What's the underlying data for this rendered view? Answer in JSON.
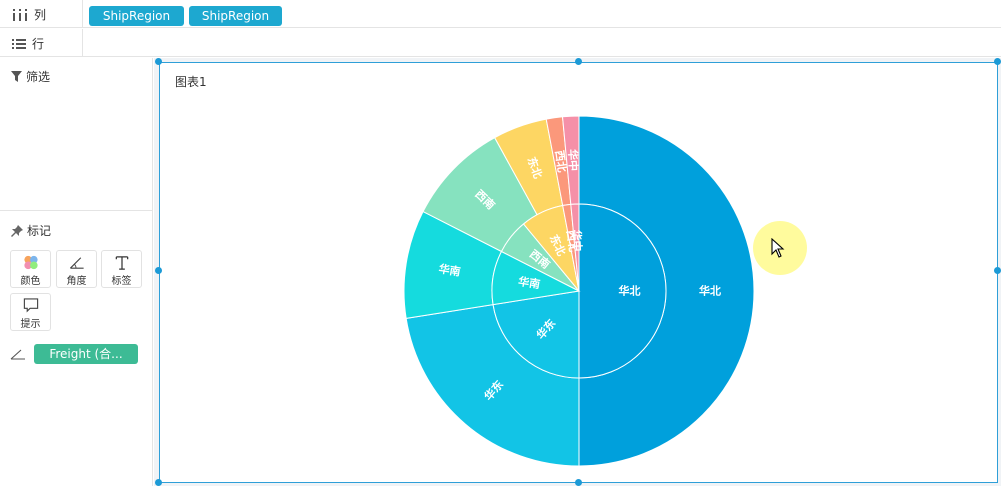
{
  "shelves": {
    "columns": {
      "label": "列",
      "pills": [
        "ShipRegion",
        "ShipRegion"
      ]
    },
    "rows": {
      "label": "行"
    }
  },
  "sidebar": {
    "filter_label": "筛选",
    "marks_label": "标记",
    "mark_buttons": [
      "颜色",
      "角度",
      "标签",
      "提示"
    ],
    "angle_field": "Freight (合..."
  },
  "chart": {
    "title": "图表1"
  },
  "chart_data": {
    "type": "pie",
    "variant": "nested-donut",
    "title": "图表1",
    "categories": [
      "华北",
      "华东",
      "华南",
      "西南",
      "东北",
      "西北",
      "华中"
    ],
    "colors": {
      "华北": "#00a0dc",
      "华东": "#12c4e6",
      "华南": "#15dbde",
      "西南": "#86e2bf",
      "东北": "#fdd663",
      "西北": "#fb987b",
      "华中": "#f590a8"
    },
    "inner_ring": [
      {
        "label": "华北",
        "value": 0.5
      },
      {
        "label": "华东",
        "value": 0.225
      },
      {
        "label": "华南",
        "value": 0.1
      },
      {
        "label": "西南",
        "value": 0.065
      },
      {
        "label": "东北",
        "value": 0.08
      },
      {
        "label": "西北",
        "value": 0.015
      },
      {
        "label": "华中",
        "value": 0.015
      }
    ],
    "outer_ring": [
      {
        "label": "华北",
        "value": 0.5
      },
      {
        "label": "华东",
        "value": 0.225
      },
      {
        "label": "华南",
        "value": 0.1
      },
      {
        "label": "西南",
        "value": 0.095
      },
      {
        "label": "东北",
        "value": 0.05
      },
      {
        "label": "西北",
        "value": 0.015
      },
      {
        "label": "华中",
        "value": 0.015
      }
    ]
  }
}
